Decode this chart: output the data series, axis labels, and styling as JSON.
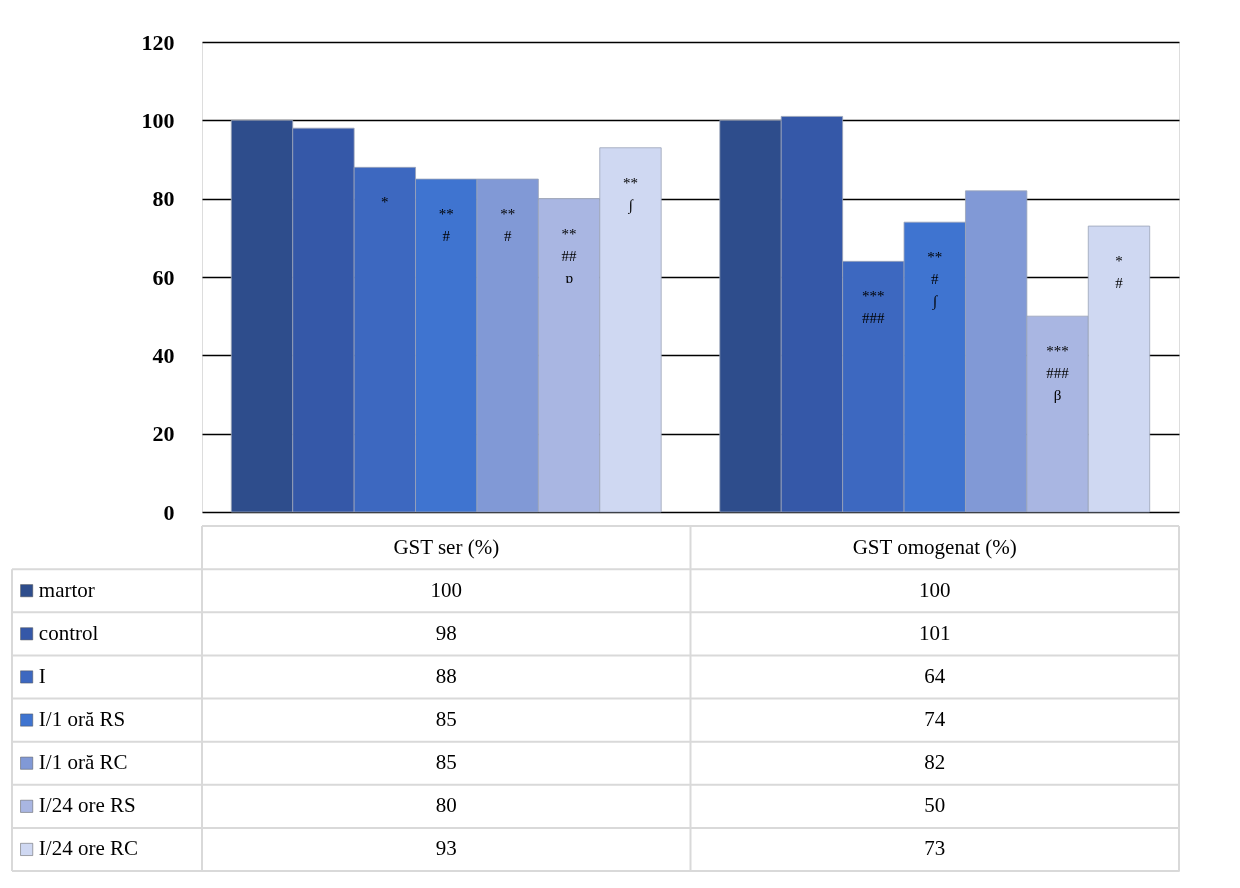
{
  "chart_data": {
    "type": "bar",
    "categories": [
      "GST ser (%)",
      "GST omogenat (%)"
    ],
    "series": [
      {
        "name": "martor",
        "color": "#2e4d8c",
        "values": [
          100,
          100
        ]
      },
      {
        "name": "control",
        "color": "#3558a8",
        "values": [
          98,
          101
        ]
      },
      {
        "name": "I",
        "color": "#3d68c0",
        "values": [
          88,
          64
        ]
      },
      {
        "name": "I/1 oră RS",
        "color": "#3f74d0",
        "values": [
          85,
          74
        ]
      },
      {
        "name": "I/1 oră RC",
        "color": "#8199d6",
        "values": [
          85,
          82
        ]
      },
      {
        "name": "I/24 ore RS",
        "color": "#a9b6e2",
        "values": [
          80,
          50
        ]
      },
      {
        "name": "I/24 ore RC",
        "color": "#cfd8f2",
        "values": [
          93,
          73
        ]
      }
    ],
    "annotations": [
      "*",
      "**\n#",
      "**\n#",
      "**\n##\nɒ",
      "**\n∫",
      "***\n###",
      "**\n#\n∫",
      "***\n###\nβ",
      "*\n#"
    ],
    "ylim": [
      0,
      120
    ],
    "yticks": [
      0,
      20,
      40,
      60,
      80,
      100,
      120
    ],
    "grid": "y",
    "legend": "bottom",
    "data_labels": true
  }
}
